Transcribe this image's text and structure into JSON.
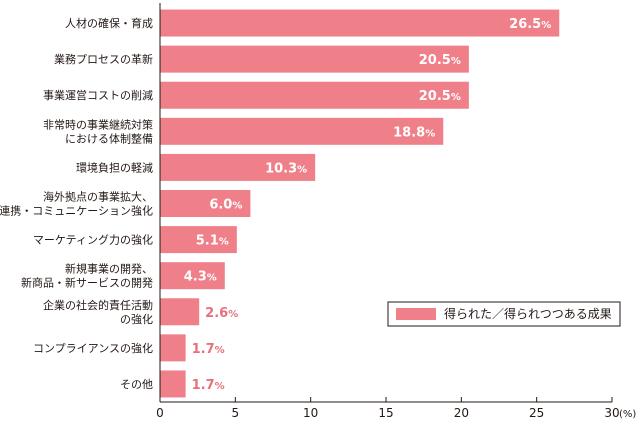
{
  "chart_data": {
    "type": "bar",
    "orientation": "horizontal",
    "categories": [
      [
        "人材の確保・育成"
      ],
      [
        "業務プロセスの革新"
      ],
      [
        "事業運営コストの削減"
      ],
      [
        "非常時の事業継続対策",
        "における体制整備"
      ],
      [
        "環境負担の軽減"
      ],
      [
        "海外拠点の事業拡大、",
        "連携・コミュニケーション強化"
      ],
      [
        "マーケティング力の強化"
      ],
      [
        "新規事業の開発、",
        "新商品・新サービスの開発"
      ],
      [
        "企業の社会的責任活動",
        "の強化"
      ],
      [
        "コンプライアンスの強化"
      ],
      [
        "その他"
      ]
    ],
    "series": [
      {
        "name": "得られた／得られつつある成果",
        "values": [
          26.5,
          20.5,
          20.5,
          18.8,
          10.3,
          6.0,
          5.1,
          4.3,
          2.6,
          1.7,
          1.7
        ],
        "labels": [
          "26.5",
          "20.5",
          "20.5",
          "18.8",
          "10.3",
          "6.0",
          "5.1",
          "4.3",
          "2.6",
          "1.7",
          "1.7"
        ]
      }
    ],
    "value_suffix": "%",
    "xlim": [
      0,
      30
    ],
    "xticks": [
      0,
      5,
      10,
      15,
      20,
      25,
      30
    ],
    "x_unit": "(%)",
    "grid": false,
    "legend_position": "bottom-right",
    "bar_color": "#ef808a",
    "label_color": "#e8707a"
  }
}
